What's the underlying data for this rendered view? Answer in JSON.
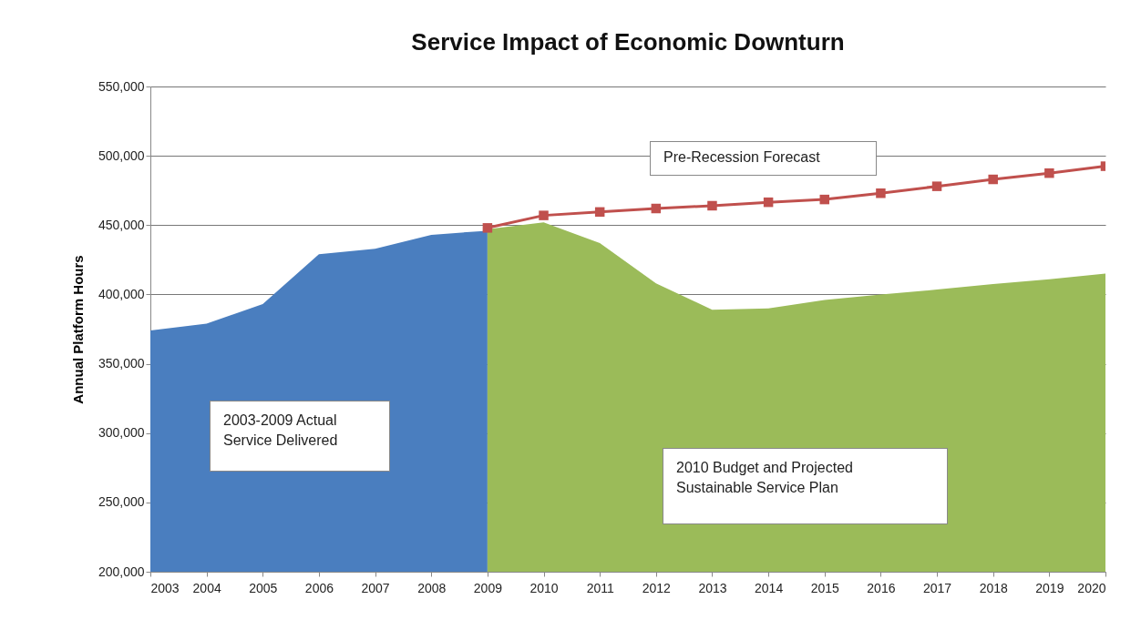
{
  "chart_data": {
    "type": "area",
    "title": "Service Impact of Economic Downturn",
    "ylabel": "Annual Platform Hours",
    "xlim": [
      2003,
      2020
    ],
    "xticks": [
      2003,
      2004,
      2005,
      2006,
      2007,
      2008,
      2009,
      2010,
      2011,
      2012,
      2013,
      2014,
      2015,
      2016,
      2017,
      2018,
      2019,
      2020
    ],
    "ylim": [
      200000,
      550000
    ],
    "yticks": [
      {
        "value": 200000,
        "label": "200,000"
      },
      {
        "value": 250000,
        "label": "250,000"
      },
      {
        "value": 300000,
        "label": "300,000"
      },
      {
        "value": 350000,
        "label": "350,000"
      },
      {
        "value": 400000,
        "label": "400,000"
      },
      {
        "value": 450000,
        "label": "450,000"
      },
      {
        "value": 500000,
        "label": "500,000"
      },
      {
        "value": 550000,
        "label": "550,000"
      }
    ],
    "grid": "y",
    "series": [
      {
        "name": "2003-2009 Actual Service Delivered",
        "color": "#4a7ebf",
        "x": [
          2003,
          2004,
          2005,
          2006,
          2007,
          2008,
          2009
        ],
        "values": [
          374000,
          379000,
          393000,
          429000,
          433000,
          443000,
          446000
        ]
      },
      {
        "name": "2010 Budget and Projected Sustainable Service Plan",
        "color": "#9bbb59",
        "x": [
          2009,
          2010,
          2011,
          2012,
          2013,
          2014,
          2015,
          2016,
          2017,
          2018,
          2019,
          2020
        ],
        "values": [
          447000,
          452000,
          437000,
          408000,
          389000,
          390000,
          396000,
          400000,
          403500,
          407500,
          411000,
          415000
        ]
      },
      {
        "name": "Pre-Recession Forecast",
        "type": "line",
        "marker": "square",
        "color": "#c0504d",
        "x": [
          2009,
          2010,
          2011,
          2012,
          2013,
          2014,
          2015,
          2016,
          2017,
          2018,
          2019,
          2020
        ],
        "values": [
          448000,
          457000,
          459500,
          462000,
          464000,
          466500,
          468500,
          473000,
          478000,
          483000,
          487500,
          492500
        ]
      }
    ]
  }
}
